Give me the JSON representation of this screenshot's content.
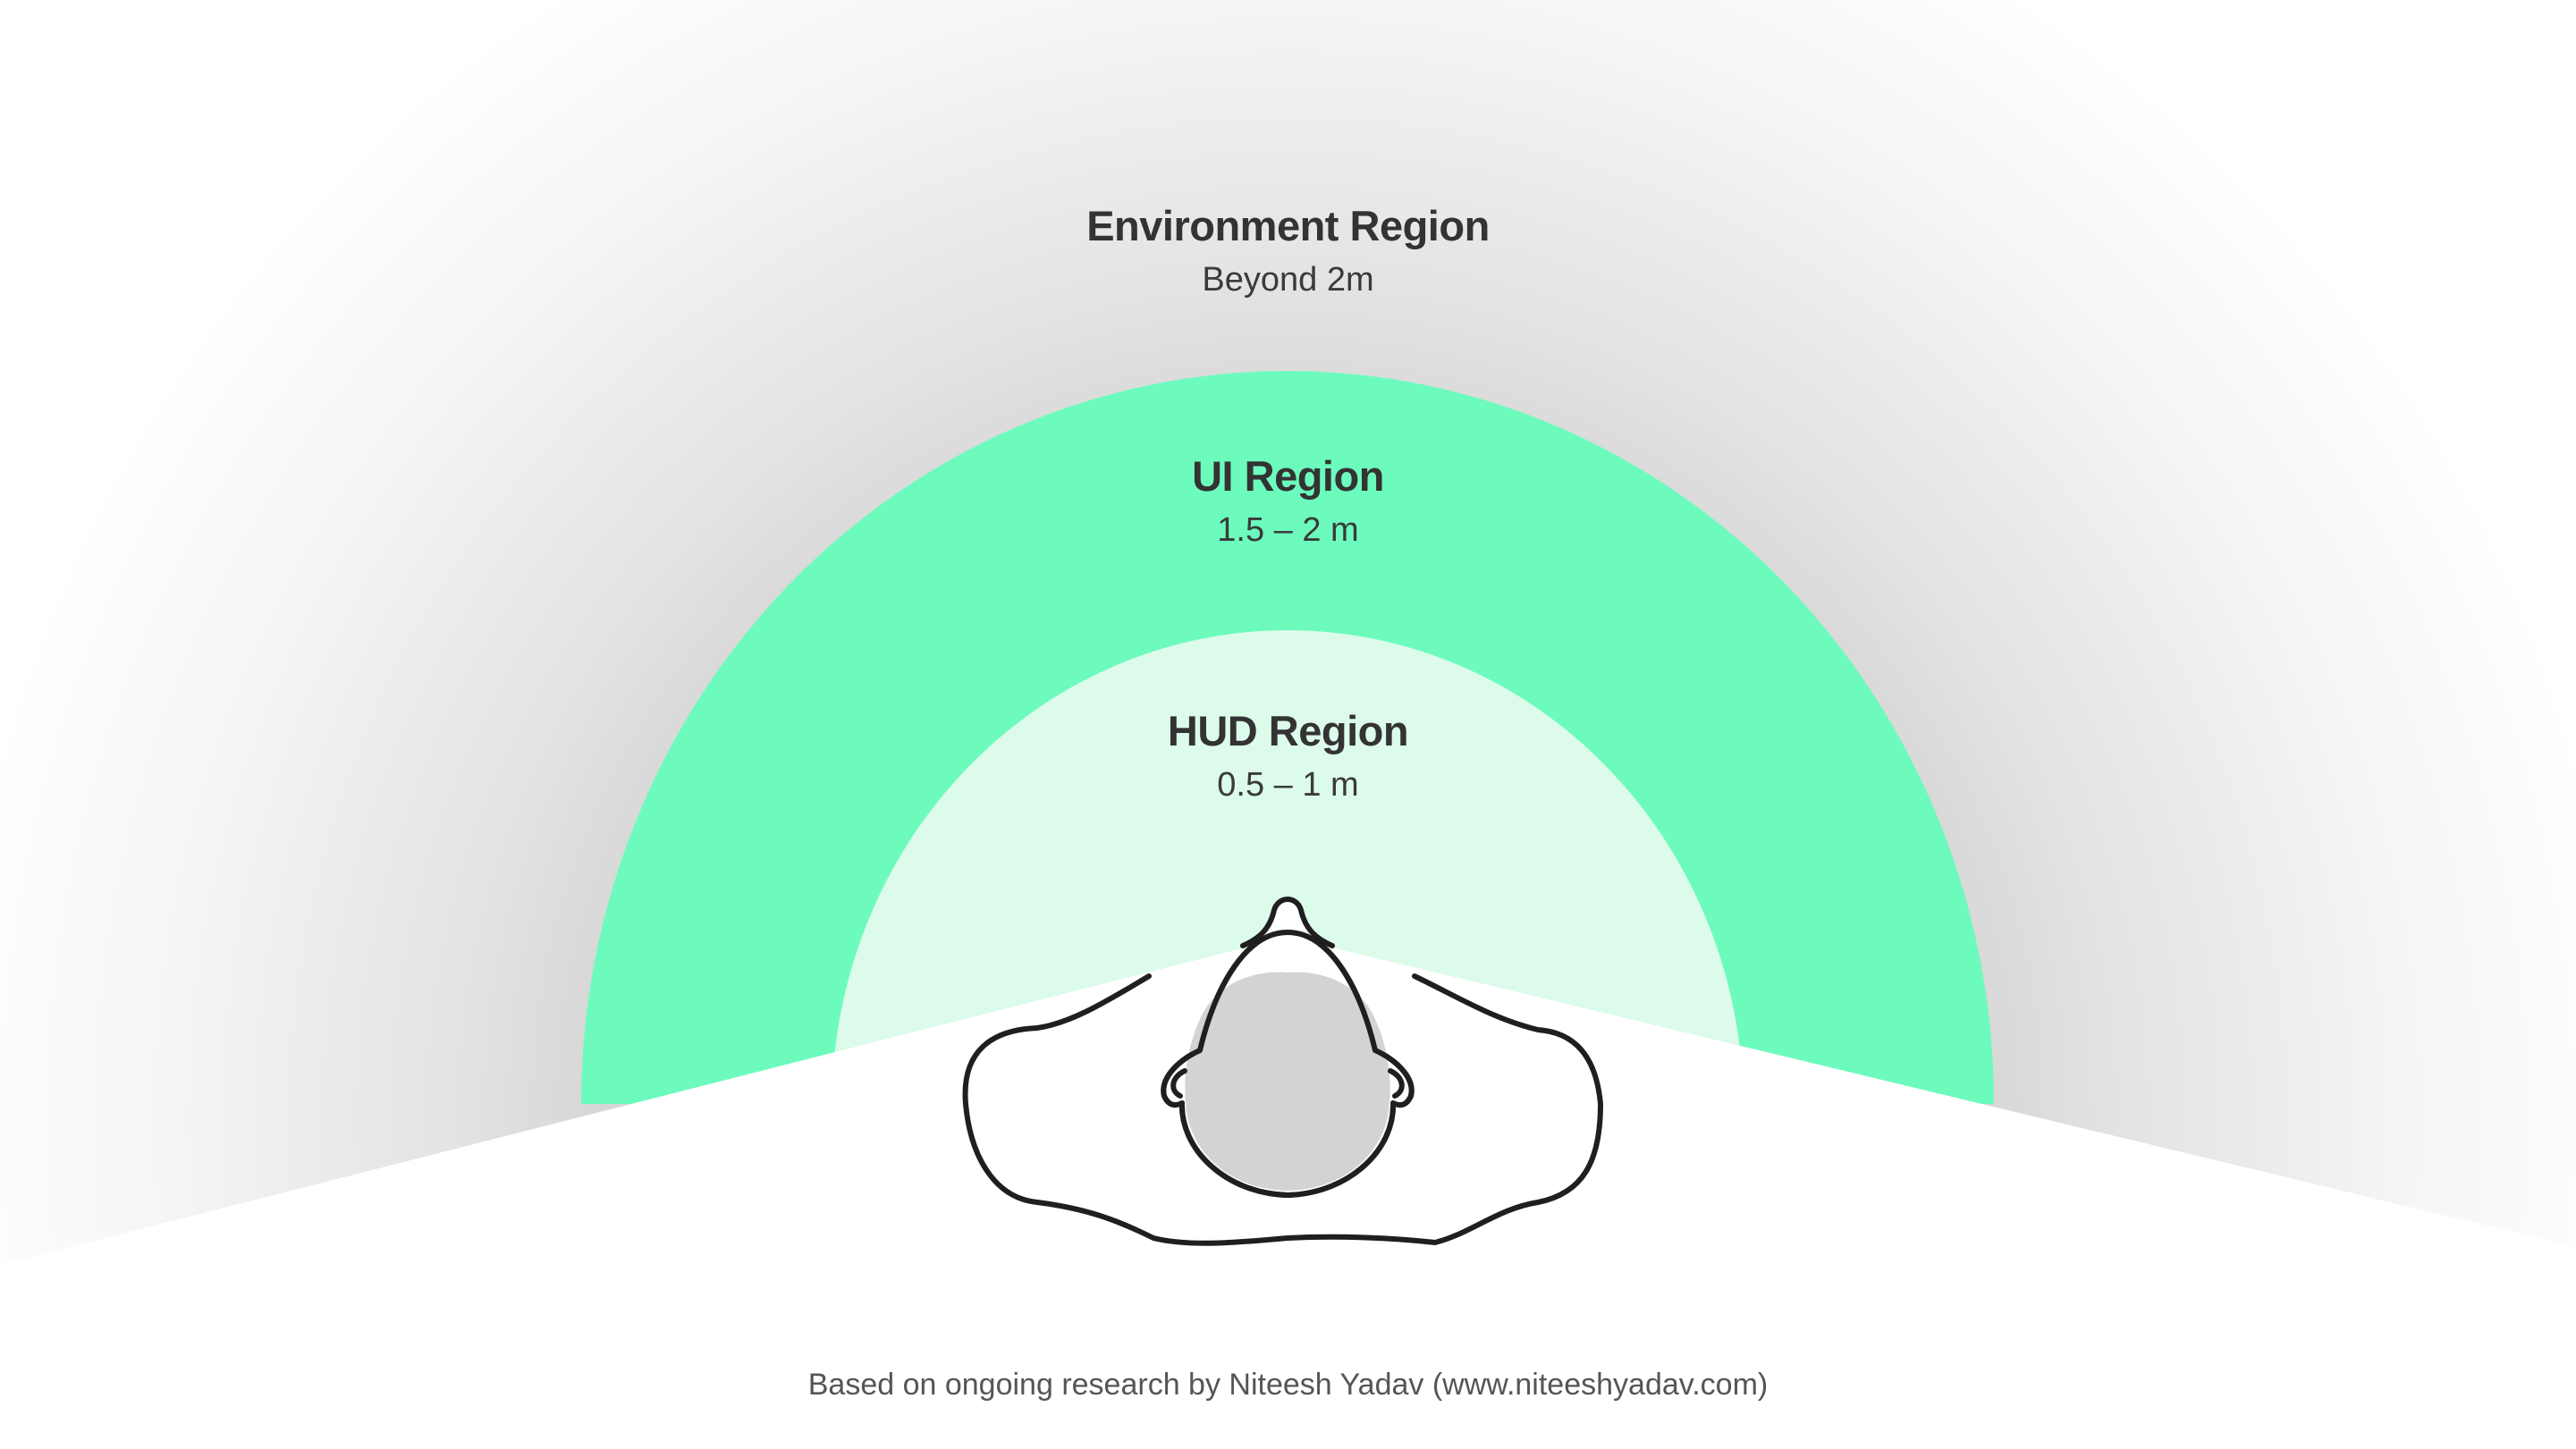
{
  "regions": {
    "environment": {
      "title": "Environment Region",
      "distance": "Beyond 2m"
    },
    "ui": {
      "title": "UI Region",
      "distance": "1.5 – 2 m"
    },
    "hud": {
      "title": "HUD Region",
      "distance": "0.5 – 1 m"
    }
  },
  "footer": {
    "credit": "Based on ongoing research by Niteesh Yadav (www.niteeshyadav.com)"
  },
  "colors": {
    "environment_shadow": "#c9c9c9",
    "ui_region": "#6cfbbd",
    "hud_region": "#dcfbeb",
    "head_fill": "#d3d3d3",
    "outline": "#1f1f1f",
    "text": "#333333"
  },
  "icons": {
    "person": "person-top-view-icon"
  }
}
